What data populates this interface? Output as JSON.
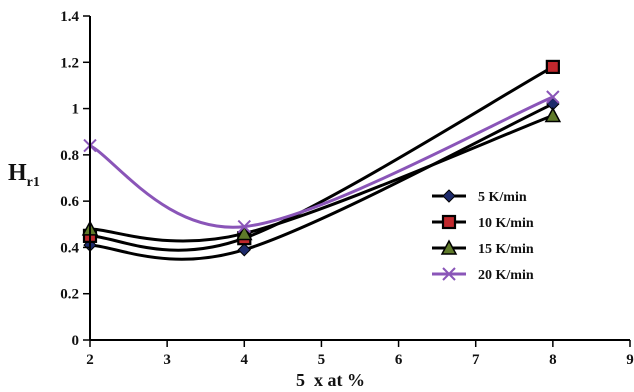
{
  "chart_data": {
    "type": "line",
    "xlabel": "5  x at %",
    "ylabel": {
      "main": "H",
      "sub": "r1"
    },
    "xlim": [
      2,
      9
    ],
    "ylim": [
      0,
      1.4
    ],
    "xticks": [
      "2",
      "3",
      "4",
      "5",
      "6",
      "7",
      "8",
      "9"
    ],
    "yticks": [
      "0",
      "0.2",
      "0.4",
      "0.6",
      "0.8",
      "1",
      "1.2",
      "1.4"
    ],
    "grid": false,
    "legend_position": "right",
    "x": [
      2,
      4,
      8
    ],
    "series": [
      {
        "name": "5 K/min",
        "values": [
          0.41,
          0.39,
          1.02
        ],
        "color": "#000000",
        "marker": "diamond-icon"
      },
      {
        "name": "10 K/min",
        "values": [
          0.45,
          0.44,
          1.18
        ],
        "color": "#000000",
        "marker": "square-icon"
      },
      {
        "name": "15 K/min",
        "values": [
          0.48,
          0.46,
          0.97
        ],
        "color": "#000000",
        "marker": "triangle-icon"
      },
      {
        "name": "20 K/min",
        "values": [
          0.84,
          0.49,
          1.05
        ],
        "color": "#8a55b8",
        "marker": "x-icon"
      }
    ]
  }
}
